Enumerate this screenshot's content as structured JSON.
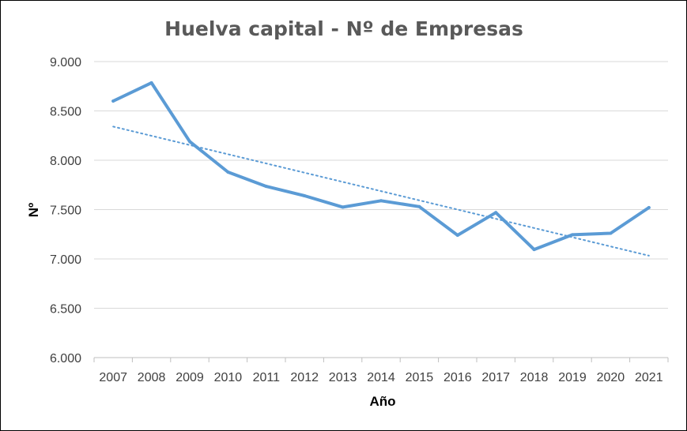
{
  "chart_data": {
    "type": "line",
    "title": "Huelva capital - Nº de Empresas",
    "xlabel": "Año",
    "ylabel": "Nº",
    "categories": [
      "2007",
      "2008",
      "2009",
      "2010",
      "2011",
      "2012",
      "2013",
      "2014",
      "2015",
      "2016",
      "2017",
      "2018",
      "2019",
      "2020",
      "2021"
    ],
    "series": [
      {
        "values": [
          8600,
          8785,
          8190,
          7880,
          7735,
          7640,
          7525,
          7590,
          7530,
          7240,
          7470,
          7095,
          7245,
          7260,
          7520
        ],
        "color": "#5B9BD5"
      }
    ],
    "trendline": {
      "type": "linear",
      "style": "dotted",
      "color": "#5B9BD5"
    },
    "ylim": [
      6000,
      9000
    ],
    "yticks": [
      "6.000",
      "6.500",
      "7.000",
      "7.500",
      "8.000",
      "8.500",
      "9.000"
    ],
    "grid": true,
    "legend": "none"
  }
}
